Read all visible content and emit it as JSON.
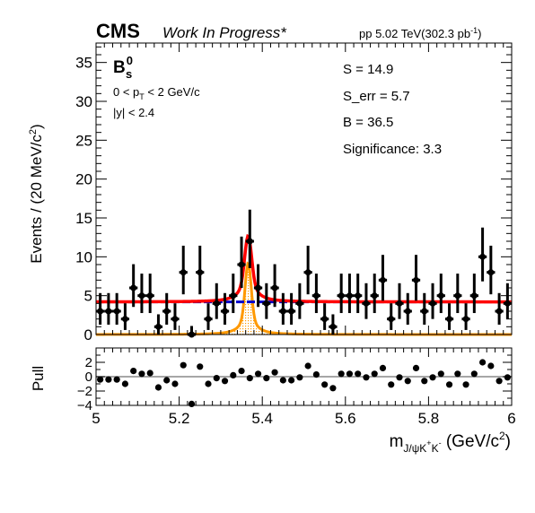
{
  "header": {
    "experiment": "CMS",
    "status": "Work In Progress*",
    "energy_lumi": "pp 5.02 TeV(302.3 pb",
    "lumi_sup": "-1",
    "lumi_close": ")"
  },
  "annotations": {
    "particle": "B",
    "particle_sup": "0",
    "particle_sub": "s",
    "pt_cut_pre": "0 < p",
    "pt_cut_sub": "T",
    "pt_cut_post": " < 2 GeV/c",
    "y_cut": "|y| < 2.4",
    "fit_S": "S = 14.9",
    "fit_Serr": "S_err = 5.7",
    "fit_B": "B = 36.5",
    "fit_sig": "Significance: 3.3"
  },
  "colors": {
    "data": "#000000",
    "total_fit": "#ff0000",
    "background": "#0000cc",
    "signal": "#ff9900",
    "pull_line": "#888888"
  },
  "chart_data": [
    {
      "type": "scatter",
      "name": "main",
      "ylabel": "Events / (20 MeV/c",
      "ylabel_sup": "2",
      "ylabel_close": ")",
      "xlim": [
        5.0,
        6.0
      ],
      "ylim": [
        0,
        37.5
      ],
      "yticks": [
        "0",
        "5",
        "10",
        "15",
        "20",
        "25",
        "30",
        "35"
      ],
      "ytick_values": [
        0,
        5,
        10,
        15,
        20,
        25,
        30,
        35
      ],
      "bin_width": 0.02,
      "x": [
        5.01,
        5.03,
        5.05,
        5.07,
        5.09,
        5.11,
        5.13,
        5.15,
        5.17,
        5.19,
        5.21,
        5.23,
        5.25,
        5.27,
        5.29,
        5.31,
        5.33,
        5.35,
        5.37,
        5.39,
        5.41,
        5.43,
        5.45,
        5.47,
        5.49,
        5.51,
        5.53,
        5.55,
        5.57,
        5.59,
        5.61,
        5.63,
        5.65,
        5.67,
        5.69,
        5.71,
        5.73,
        5.75,
        5.77,
        5.79,
        5.81,
        5.83,
        5.85,
        5.87,
        5.89,
        5.91,
        5.93,
        5.95,
        5.97,
        5.99
      ],
      "y": [
        3,
        3,
        3,
        2,
        6,
        5,
        5,
        1,
        3,
        2,
        8,
        0,
        8,
        2,
        4,
        3,
        5,
        9,
        12,
        6,
        4,
        6,
        3,
        3,
        4,
        8,
        5,
        2,
        1,
        5,
        5,
        5,
        4,
        5,
        7,
        2,
        4,
        3,
        7,
        3,
        4,
        5,
        2,
        5,
        2,
        5,
        10,
        8,
        3,
        4
      ],
      "signal_peak_x": 5.366,
      "total_fit_peak": 12.7,
      "background_level": 4.2,
      "signal_peak": 9.2
    },
    {
      "type": "scatter",
      "name": "pull",
      "ylabel": "Pull",
      "xlabel": "m",
      "xlabel_sub": "J/ψK",
      "xlabel_sup1": "+",
      "xlabel_mid": "K",
      "xlabel_sup2": "-",
      "xlabel_unit": " (GeV/c",
      "xlabel_unit_sup": "2",
      "xlabel_unit_close": ")",
      "xlim": [
        5.0,
        6.0
      ],
      "ylim": [
        -4,
        4
      ],
      "xticks": [
        "5",
        "5.2",
        "5.4",
        "5.6",
        "5.8",
        "6"
      ],
      "xtick_values": [
        5.0,
        5.2,
        5.4,
        5.6,
        5.8,
        6.0
      ],
      "yticks": [
        "−4",
        "−2",
        "0",
        "2"
      ],
      "ytick_values": [
        -4,
        -2,
        0,
        2
      ],
      "x": [
        5.01,
        5.03,
        5.05,
        5.07,
        5.09,
        5.11,
        5.13,
        5.15,
        5.17,
        5.19,
        5.21,
        5.23,
        5.25,
        5.27,
        5.29,
        5.31,
        5.33,
        5.35,
        5.37,
        5.39,
        5.41,
        5.43,
        5.45,
        5.47,
        5.49,
        5.51,
        5.53,
        5.55,
        5.57,
        5.59,
        5.61,
        5.63,
        5.65,
        5.67,
        5.69,
        5.71,
        5.73,
        5.75,
        5.77,
        5.79,
        5.81,
        5.83,
        5.85,
        5.87,
        5.89,
        5.91,
        5.93,
        5.95,
        5.97,
        5.99
      ],
      "y": [
        -0.4,
        -0.4,
        -0.4,
        -1.0,
        0.8,
        0.4,
        0.5,
        -1.5,
        -0.5,
        -1.0,
        1.6,
        -3.8,
        1.4,
        -1.0,
        -0.2,
        -0.6,
        0.2,
        0.8,
        -0.2,
        0.4,
        -0.2,
        0.6,
        -0.5,
        -0.5,
        -0.1,
        1.5,
        0.3,
        -1.1,
        -1.6,
        0.4,
        0.4,
        0.4,
        -0.1,
        0.4,
        1.2,
        -1.1,
        -0.1,
        -0.6,
        1.2,
        -0.6,
        -0.1,
        0.4,
        -1.1,
        0.4,
        -1.1,
        0.4,
        2.0,
        1.5,
        -0.6,
        -0.1
      ]
    }
  ]
}
